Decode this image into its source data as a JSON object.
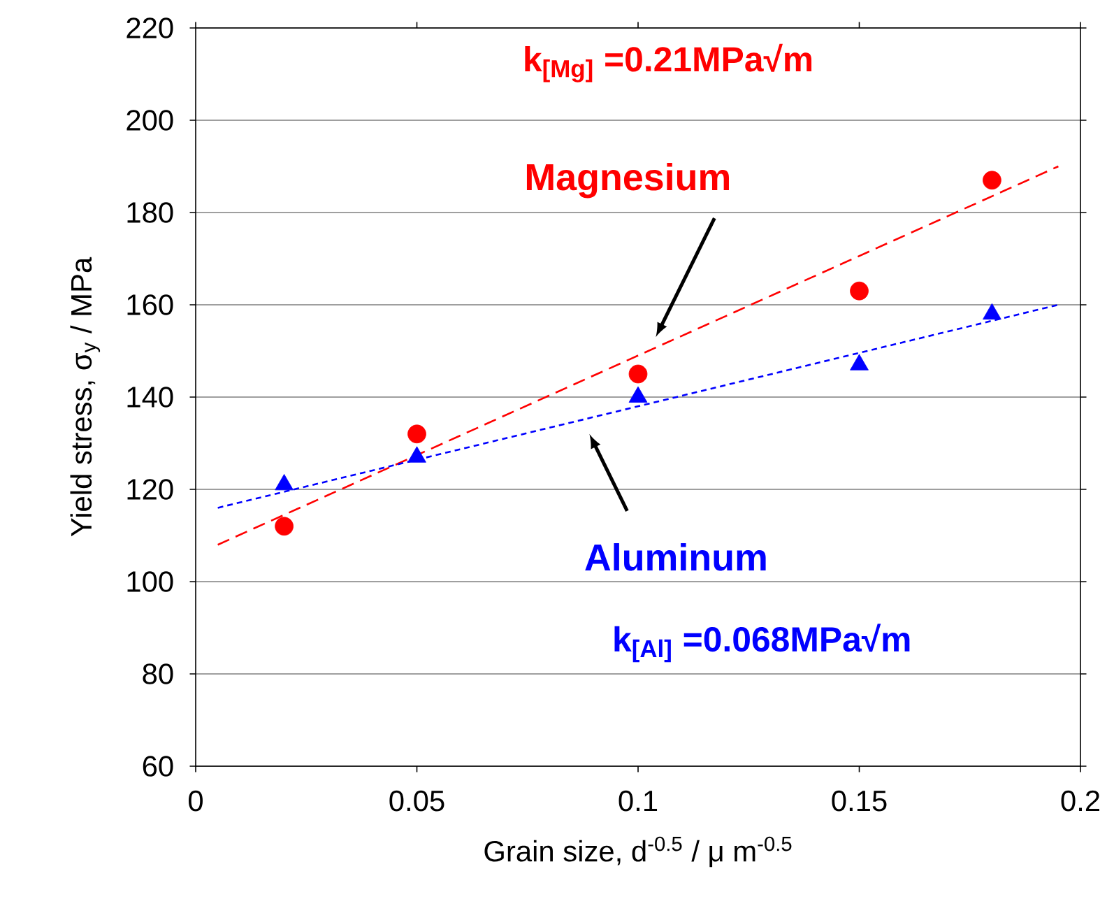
{
  "chart_data": {
    "type": "scatter",
    "xlabel": "Grain size, d$^{-0.5}$ / μ m$^{-0.5}$",
    "ylabel": "Yield stress, σ$_{y}$ / MPa",
    "xlim": [
      0,
      0.2
    ],
    "xticks": [
      0,
      0.05,
      0.1,
      0.15,
      0.2
    ],
    "ylim": [
      60,
      220
    ],
    "yticks": [
      60,
      80,
      100,
      120,
      140,
      160,
      180,
      200,
      220
    ],
    "grid": "y",
    "series": [
      {
        "color": "#ff0000",
        "marker": "circle",
        "x": [
          0.02,
          0.05,
          0.1,
          0.15,
          0.18
        ],
        "values": [
          112,
          132,
          145,
          163,
          187
        ]
      },
      {
        "color": "#0000ff",
        "marker": "triangle",
        "x": [
          0.02,
          0.05,
          0.1,
          0.15,
          0.18
        ],
        "values": [
          121,
          127,
          140,
          147,
          158
        ]
      },
      {
        "type": "line",
        "color": "#ff0000",
        "line_style": "dashed",
        "marker": "none",
        "x": [
          0.005,
          0.195
        ],
        "values": [
          108,
          190
        ]
      },
      {
        "type": "line",
        "color": "#0000ff",
        "line_style": "dotted",
        "marker": "none",
        "x": [
          0.005,
          0.195
        ],
        "values": [
          116,
          160
        ]
      }
    ],
    "annotations": [
      "k$_{[Mg]}$ =0.21MPa√m",
      "Magnesium",
      "Aluminum",
      "k$_{[Al]}$ =0.068MPa√m"
    ]
  }
}
